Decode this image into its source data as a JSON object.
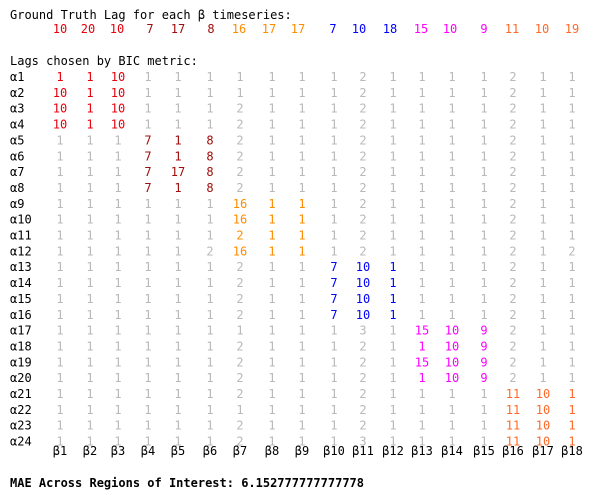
{
  "chart_data": {
    "type": "table",
    "gt_title": "Ground Truth Lag for each β timeseries:",
    "bic_title": "Lags chosen by BIC metric:",
    "columns": [
      "β1",
      "β2",
      "β3",
      "β4",
      "β5",
      "β6",
      "β7",
      "β8",
      "β9",
      "β10",
      "β11",
      "β12",
      "β13",
      "β14",
      "β15",
      "β16",
      "β17",
      "β18"
    ],
    "rows": [
      "α1",
      "α2",
      "α3",
      "α4",
      "α5",
      "α6",
      "α7",
      "α8",
      "α9",
      "α10",
      "α11",
      "α12",
      "α13",
      "α14",
      "α15",
      "α16",
      "α17",
      "α18",
      "α19",
      "α20",
      "α21",
      "α22",
      "α23",
      "α24"
    ],
    "ground_truth": [
      10,
      20,
      10,
      7,
      17,
      8,
      16,
      17,
      17,
      7,
      10,
      18,
      15,
      10,
      9,
      11,
      10,
      19
    ],
    "group_colors": [
      "#e8000b",
      "#a00d0d",
      "#ff8c00",
      "#0000ff",
      "#ff00ff",
      "#ff6a2a"
    ],
    "group_of_column": [
      0,
      0,
      0,
      1,
      1,
      1,
      2,
      2,
      2,
      3,
      3,
      3,
      4,
      4,
      4,
      5,
      5,
      5
    ],
    "group_of_row": [
      0,
      0,
      0,
      0,
      1,
      1,
      1,
      1,
      2,
      2,
      2,
      2,
      3,
      3,
      3,
      3,
      4,
      4,
      4,
      4,
      5,
      5,
      5,
      5
    ],
    "inactive_color": "#b8b8b8",
    "bic_lags": [
      [
        1,
        1,
        10,
        1,
        1,
        1,
        1,
        1,
        1,
        1,
        2,
        1,
        1,
        1,
        1,
        2,
        1,
        1
      ],
      [
        10,
        1,
        10,
        1,
        1,
        1,
        1,
        1,
        1,
        1,
        2,
        1,
        1,
        1,
        1,
        2,
        1,
        1
      ],
      [
        10,
        1,
        10,
        1,
        1,
        1,
        2,
        1,
        1,
        1,
        2,
        1,
        1,
        1,
        1,
        2,
        1,
        1
      ],
      [
        10,
        1,
        10,
        1,
        1,
        1,
        2,
        1,
        1,
        1,
        2,
        1,
        1,
        1,
        1,
        2,
        1,
        1
      ],
      [
        1,
        1,
        1,
        7,
        1,
        8,
        2,
        1,
        1,
        1,
        2,
        1,
        1,
        1,
        1,
        2,
        1,
        1
      ],
      [
        1,
        1,
        1,
        7,
        1,
        8,
        2,
        1,
        1,
        1,
        2,
        1,
        1,
        1,
        1,
        2,
        1,
        1
      ],
      [
        1,
        1,
        1,
        7,
        17,
        8,
        2,
        1,
        1,
        1,
        2,
        1,
        1,
        1,
        1,
        2,
        1,
        1
      ],
      [
        1,
        1,
        1,
        7,
        1,
        8,
        2,
        1,
        1,
        1,
        2,
        1,
        1,
        1,
        1,
        2,
        1,
        1
      ],
      [
        1,
        1,
        1,
        1,
        1,
        1,
        16,
        1,
        1,
        1,
        2,
        1,
        1,
        1,
        1,
        2,
        1,
        1
      ],
      [
        1,
        1,
        1,
        1,
        1,
        1,
        16,
        1,
        1,
        1,
        2,
        1,
        1,
        1,
        1,
        2,
        1,
        1
      ],
      [
        1,
        1,
        1,
        1,
        1,
        1,
        2,
        1,
        1,
        1,
        2,
        1,
        1,
        1,
        1,
        2,
        1,
        1
      ],
      [
        1,
        1,
        1,
        1,
        1,
        2,
        16,
        1,
        1,
        1,
        2,
        1,
        1,
        1,
        1,
        2,
        1,
        2
      ],
      [
        1,
        1,
        1,
        1,
        1,
        1,
        2,
        1,
        1,
        7,
        10,
        1,
        1,
        1,
        1,
        2,
        1,
        1
      ],
      [
        1,
        1,
        1,
        1,
        1,
        1,
        2,
        1,
        1,
        7,
        10,
        1,
        1,
        1,
        1,
        2,
        1,
        1
      ],
      [
        1,
        1,
        1,
        1,
        1,
        1,
        2,
        1,
        1,
        7,
        10,
        1,
        1,
        1,
        1,
        2,
        1,
        1
      ],
      [
        1,
        1,
        1,
        1,
        1,
        1,
        2,
        1,
        1,
        7,
        10,
        1,
        1,
        1,
        1,
        2,
        1,
        1
      ],
      [
        1,
        1,
        1,
        1,
        1,
        1,
        1,
        1,
        1,
        1,
        3,
        1,
        15,
        10,
        9,
        2,
        1,
        1
      ],
      [
        1,
        1,
        1,
        1,
        1,
        1,
        2,
        1,
        1,
        1,
        2,
        1,
        1,
        10,
        9,
        2,
        1,
        1
      ],
      [
        1,
        1,
        1,
        1,
        1,
        1,
        2,
        1,
        1,
        1,
        2,
        1,
        15,
        10,
        9,
        2,
        1,
        1
      ],
      [
        1,
        1,
        1,
        1,
        1,
        1,
        2,
        1,
        1,
        1,
        2,
        1,
        1,
        10,
        9,
        2,
        1,
        1
      ],
      [
        1,
        1,
        1,
        1,
        1,
        1,
        2,
        1,
        1,
        1,
        2,
        1,
        1,
        1,
        1,
        11,
        10,
        1
      ],
      [
        1,
        1,
        1,
        1,
        1,
        1,
        1,
        1,
        1,
        1,
        2,
        1,
        1,
        1,
        1,
        11,
        10,
        1
      ],
      [
        1,
        1,
        1,
        1,
        1,
        1,
        2,
        1,
        1,
        1,
        2,
        1,
        1,
        1,
        1,
        11,
        10,
        1
      ],
      [
        1,
        1,
        1,
        1,
        1,
        1,
        2,
        1,
        1,
        1,
        3,
        1,
        1,
        1,
        1,
        11,
        10,
        1
      ]
    ],
    "mae_label": "MAE Across Regions of Interest: 6.152777777777778"
  }
}
